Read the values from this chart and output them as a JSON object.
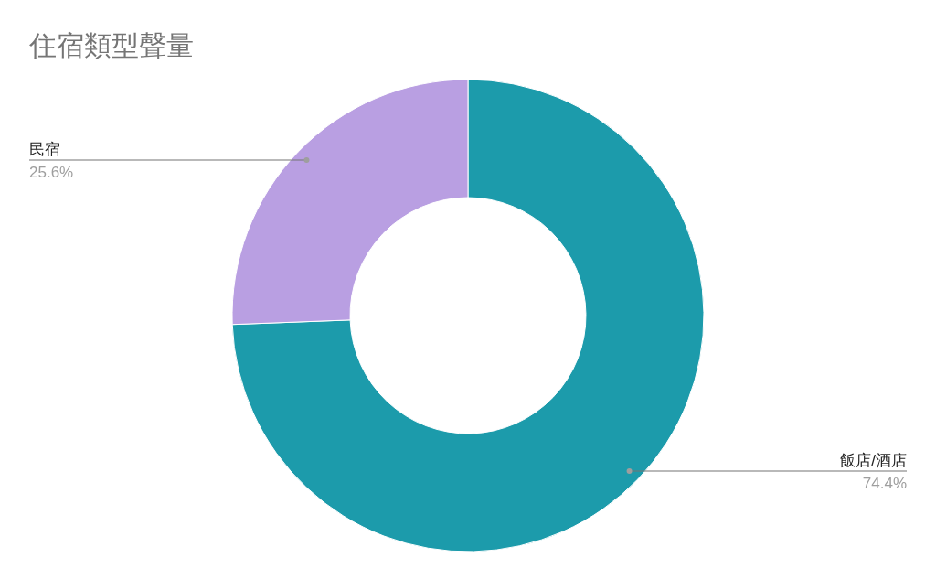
{
  "chart_data": {
    "type": "donut",
    "title": "住宿類型聲量",
    "categories": [
      "飯店/酒店",
      "民宿"
    ],
    "values": [
      74.4,
      25.6
    ],
    "colors": [
      "#1c9bab",
      "#b99fe2"
    ],
    "value_labels": [
      "74.4%",
      "25.6%"
    ],
    "legend": false
  }
}
